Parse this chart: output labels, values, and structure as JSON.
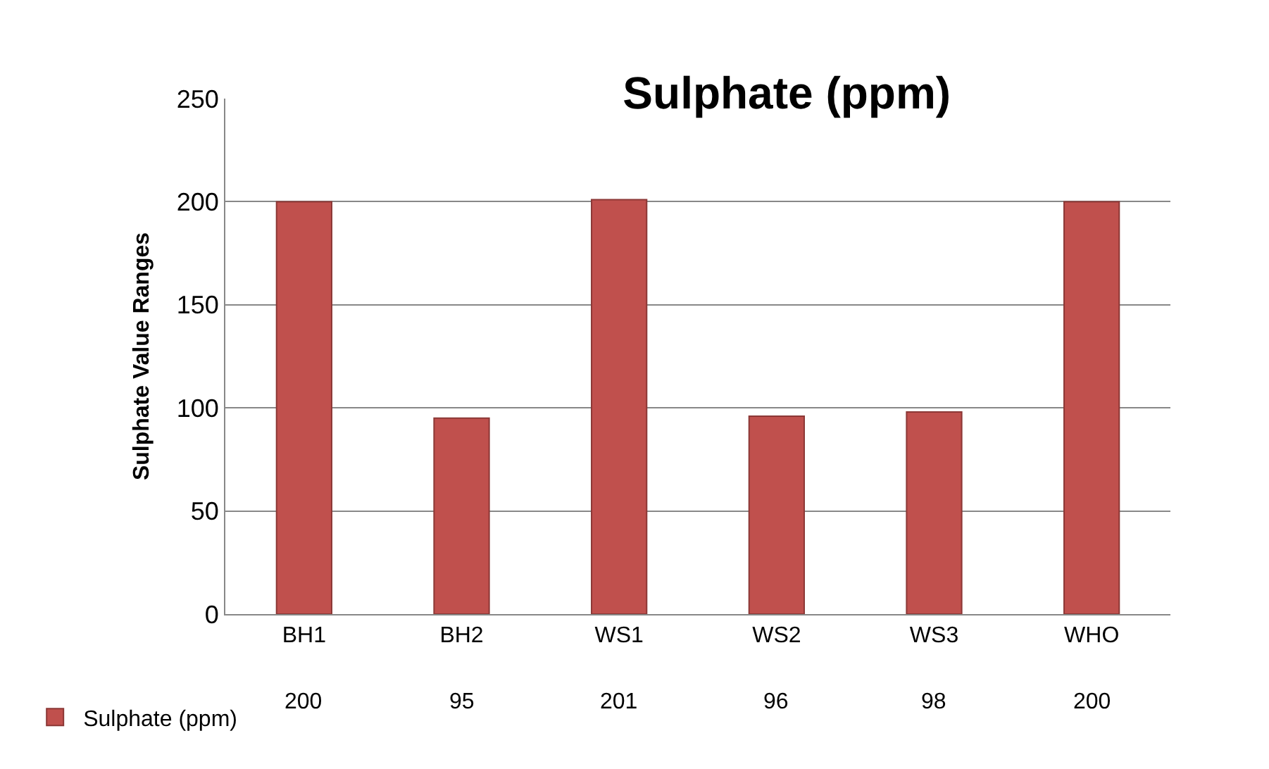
{
  "chart_data": {
    "type": "bar",
    "title": "Sulphate (ppm)",
    "ylabel": "Sulphate Value Ranges",
    "categories": [
      "BH1",
      "BH2",
      "WS1",
      "WS2",
      "WS3",
      "WHO"
    ],
    "series": [
      {
        "name": "Sulphate (ppm)",
        "color": "#c0504d",
        "values": [
          200,
          95,
          201,
          96,
          98,
          200
        ]
      }
    ],
    "ylim": [
      0,
      250
    ],
    "yticks": [
      0,
      50,
      100,
      150,
      200,
      250
    ],
    "grid": "y",
    "legend": "bottom left",
    "data_labels": true
  }
}
